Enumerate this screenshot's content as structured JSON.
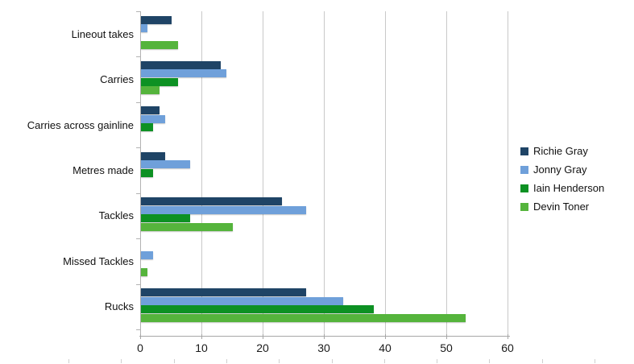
{
  "chart_data": {
    "type": "bar",
    "orientation": "horizontal",
    "title": "",
    "xlabel": "",
    "ylabel": "",
    "categories": [
      "Lineout takes",
      "Carries",
      "Carries across gainline",
      "Metres made",
      "Tackles",
      "Missed Tackles",
      "Rucks"
    ],
    "series": [
      {
        "name": "Richie Gray",
        "color": "#1F4466",
        "values": [
          5,
          13,
          3,
          4,
          23,
          0,
          27
        ]
      },
      {
        "name": "Jonny Gray",
        "color": "#6FA0DA",
        "values": [
          1,
          14,
          4,
          8,
          27,
          2,
          33
        ]
      },
      {
        "name": "Iain Henderson",
        "color": "#0D9123",
        "values": [
          0,
          6,
          2,
          2,
          8,
          0,
          38
        ]
      },
      {
        "name": "Devin Toner",
        "color": "#55B43C",
        "values": [
          6,
          3,
          0,
          0,
          15,
          1,
          53
        ]
      }
    ],
    "xlim": [
      0,
      60
    ],
    "x_ticks": [
      "0",
      "10",
      "20",
      "30",
      "40",
      "50",
      "60"
    ],
    "grid": "vertical-only",
    "legend_position": "right"
  },
  "colors": {
    "background": "#ffffff",
    "gridline": "#c9c9c9",
    "axis": "#a6a6a6",
    "ruler_tick": "#cfcfcf",
    "text": "#111111"
  }
}
